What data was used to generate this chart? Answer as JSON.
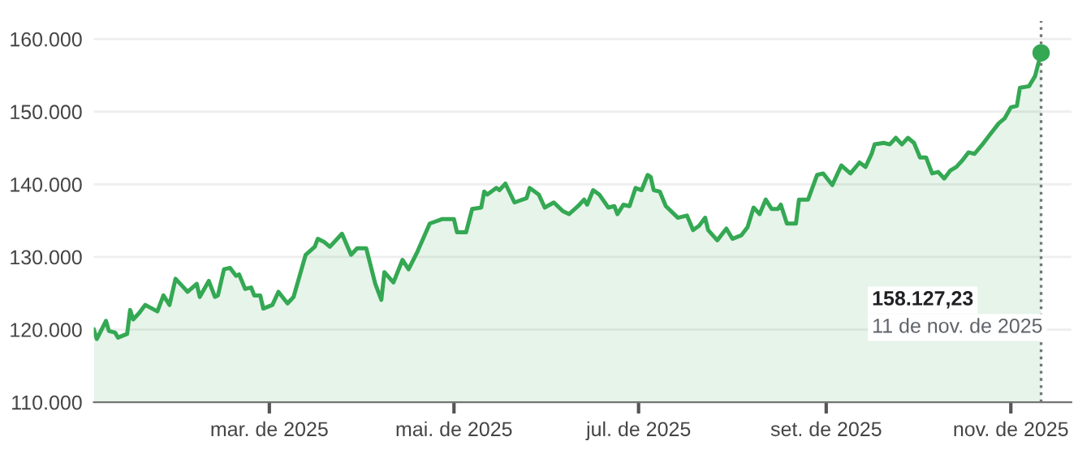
{
  "chart_data": {
    "type": "area",
    "x": [
      "2025-01-02",
      "2025-01-03",
      "2025-01-06",
      "2025-01-07",
      "2025-01-09",
      "2025-01-10",
      "2025-01-13",
      "2025-01-14",
      "2025-01-15",
      "2025-01-17",
      "2025-01-19",
      "2025-01-23",
      "2025-01-25",
      "2025-01-27",
      "2025-01-29",
      "2025-01-31",
      "2025-02-02",
      "2025-02-05",
      "2025-02-06",
      "2025-02-09",
      "2025-02-11",
      "2025-02-12",
      "2025-02-14",
      "2025-02-16",
      "2025-02-18",
      "2025-02-19",
      "2025-02-21",
      "2025-02-23",
      "2025-02-24",
      "2025-02-26",
      "2025-02-27",
      "2025-03-02",
      "2025-03-04",
      "2025-03-07",
      "2025-03-09",
      "2025-03-13",
      "2025-03-16",
      "2025-03-17",
      "2025-03-19",
      "2025-03-21",
      "2025-03-25",
      "2025-03-28",
      "2025-03-30",
      "2025-04-02",
      "2025-04-05",
      "2025-04-07",
      "2025-04-08",
      "2025-04-11",
      "2025-04-14",
      "2025-04-16",
      "2025-04-19",
      "2025-04-23",
      "2025-04-27",
      "2025-05-01",
      "2025-05-02",
      "2025-05-05",
      "2025-05-07",
      "2025-05-10",
      "2025-05-11",
      "2025-05-12",
      "2025-05-15",
      "2025-05-16",
      "2025-05-18",
      "2025-05-21",
      "2025-05-25",
      "2025-05-26",
      "2025-05-29",
      "2025-05-31",
      "2025-06-03",
      "2025-06-06",
      "2025-06-08",
      "2025-06-11",
      "2025-06-13",
      "2025-06-14",
      "2025-06-16",
      "2025-06-18",
      "2025-06-21",
      "2025-06-23",
      "2025-06-24",
      "2025-06-26",
      "2025-06-28",
      "2025-06-30",
      "2025-07-02",
      "2025-07-04",
      "2025-07-05",
      "2025-07-06",
      "2025-07-08",
      "2025-07-10",
      "2025-07-14",
      "2025-07-17",
      "2025-07-19",
      "2025-07-21",
      "2025-07-23",
      "2025-07-24",
      "2025-07-27",
      "2025-07-30",
      "2025-08-01",
      "2025-08-04",
      "2025-08-06",
      "2025-08-08",
      "2025-08-10",
      "2025-08-12",
      "2025-08-14",
      "2025-08-16",
      "2025-08-17",
      "2025-08-19",
      "2025-08-22",
      "2025-08-23",
      "2025-08-26",
      "2025-08-29",
      "2025-08-31",
      "2025-09-03",
      "2025-09-06",
      "2025-09-09",
      "2025-09-12",
      "2025-09-14",
      "2025-09-16",
      "2025-09-17",
      "2025-09-20",
      "2025-09-22",
      "2025-09-24",
      "2025-09-26",
      "2025-09-28",
      "2025-09-30",
      "2025-10-02",
      "2025-10-04",
      "2025-10-06",
      "2025-10-08",
      "2025-10-10",
      "2025-10-12",
      "2025-10-14",
      "2025-10-16",
      "2025-10-18",
      "2025-10-20",
      "2025-10-23",
      "2025-10-25",
      "2025-10-28",
      "2025-10-30",
      "2025-11-01",
      "2025-11-03",
      "2025-11-04",
      "2025-11-07",
      "2025-11-09",
      "2025-11-11"
    ],
    "series": [
      {
        "color": "#34a853",
        "values": [
          120000,
          118700,
          121200,
          119800,
          119600,
          118900,
          119400,
          122700,
          121400,
          122300,
          123400,
          122500,
          124700,
          123400,
          127000,
          126100,
          125200,
          126300,
          124500,
          126700,
          124500,
          124700,
          128300,
          128500,
          127400,
          127600,
          125600,
          125800,
          124700,
          124700,
          122900,
          123400,
          125200,
          123600,
          124500,
          130300,
          131400,
          132500,
          132100,
          131400,
          133200,
          130300,
          131200,
          131200,
          126300,
          124100,
          127900,
          126500,
          129600,
          128300,
          130800,
          134600,
          135200,
          135200,
          133400,
          133400,
          136600,
          136800,
          139000,
          138600,
          139500,
          139200,
          140100,
          137500,
          138100,
          139500,
          138600,
          136800,
          137500,
          136300,
          135900,
          137000,
          137900,
          137200,
          139200,
          138600,
          136800,
          137000,
          135900,
          137200,
          137000,
          139500,
          139200,
          141300,
          141000,
          139200,
          139000,
          137000,
          135400,
          135700,
          133700,
          134300,
          135400,
          133700,
          132300,
          133900,
          132500,
          133000,
          134100,
          136800,
          135900,
          137900,
          136600,
          136600,
          137200,
          134600,
          134600,
          137900,
          137900,
          141300,
          141500,
          139900,
          142600,
          141500,
          143000,
          142400,
          144200,
          145500,
          145700,
          145500,
          146400,
          145500,
          146400,
          145700,
          143700,
          143700,
          141500,
          141700,
          140800,
          141900,
          142400,
          143300,
          144400,
          144200,
          145700,
          146800,
          148400,
          149100,
          150600,
          150800,
          153300,
          153500,
          154900,
          158100
        ]
      },
      {
        "type": "scatter",
        "color": "#34a853",
        "x": [
          "2025-11-11"
        ],
        "values": [
          158100
        ]
      }
    ],
    "xlim": [
      "2025-01-02",
      "2025-11-21"
    ],
    "xticks": [
      {
        "value": "2025-03-01",
        "label": "mar. de 2025"
      },
      {
        "value": "2025-05-01",
        "label": "mai. de 2025"
      },
      {
        "value": "2025-07-01",
        "label": "jul. de 2025"
      },
      {
        "value": "2025-09-01",
        "label": "set. de 2025"
      },
      {
        "value": "2025-11-01",
        "label": "nov. de 2025"
      }
    ],
    "ylim": [
      110000,
      162500
    ],
    "yticks": [
      {
        "value": 110000,
        "label": "110.000"
      },
      {
        "value": 120000,
        "label": "120.000"
      },
      {
        "value": 130000,
        "label": "130.000"
      },
      {
        "value": 140000,
        "label": "140.000"
      },
      {
        "value": 150000,
        "label": "150.000"
      },
      {
        "value": 160000,
        "label": "160.000"
      }
    ],
    "grid": "y",
    "ref_lines": [
      {
        "axis": "x",
        "value": "2025-11-11",
        "color": "#757575",
        "line_style": "dotted"
      }
    ],
    "annotations": [
      "158.127,23",
      "11 de nov. de 2025"
    ]
  }
}
